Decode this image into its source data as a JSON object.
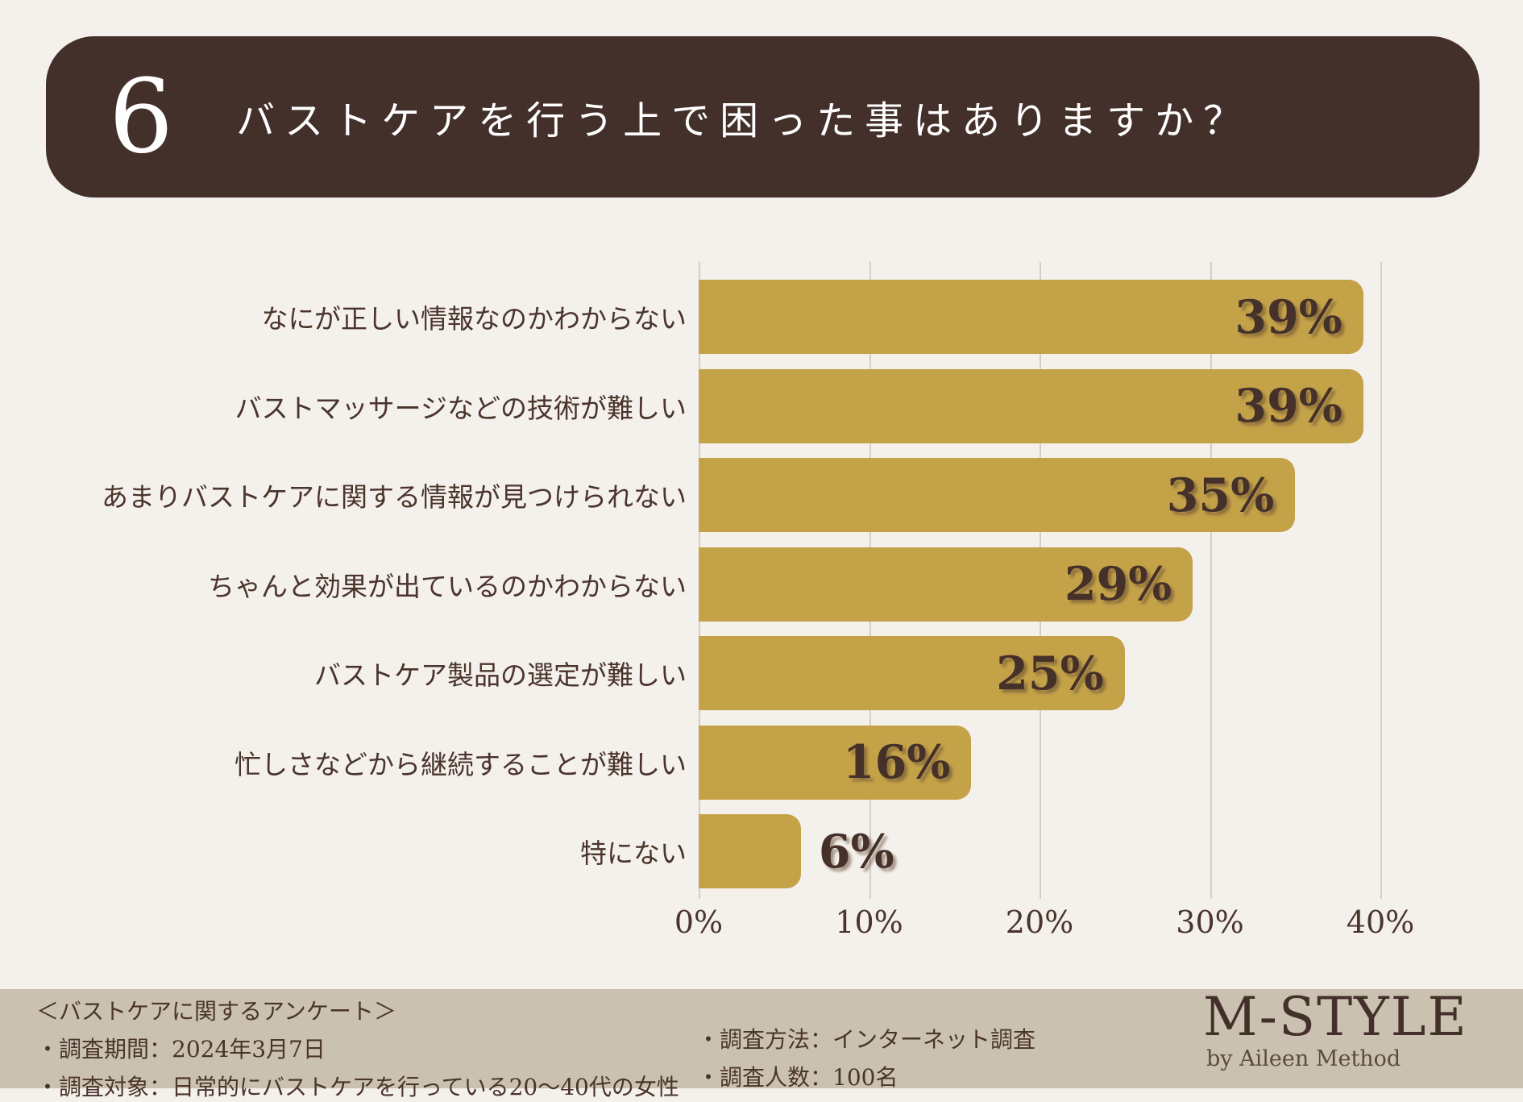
{
  "header": {
    "number": "6",
    "title": "バストケアを行う上で困った事はありますか？"
  },
  "chart_data": {
    "type": "bar",
    "orientation": "horizontal",
    "title": "バストケアを行う上で困った事はありますか？",
    "categories": [
      "なにが正しい情報なのかわからない",
      "バストマッサージなどの技術が難しい",
      "あまりバストケアに関する情報が見つけられない",
      "ちゃんと効果が出ているのかわからない",
      "バストケア製品の選定が難しい",
      "忙しさなどから継続することが難しい",
      "特にない"
    ],
    "values": [
      39,
      39,
      35,
      29,
      25,
      16,
      6
    ],
    "data_labels": [
      "39%",
      "39%",
      "35%",
      "29%",
      "25%",
      "16%",
      "6%"
    ],
    "value_suffix": "%",
    "xlim": [
      0,
      40
    ],
    "x_ticks": [
      "0%",
      "10%",
      "20%",
      "30%",
      "40%"
    ],
    "grid": "vertical",
    "legend": false
  },
  "footer": {
    "survey_title": "＜バストケアに関するアンケート＞",
    "items_left": [
      "・調査期間：2024年3月7日",
      "・調査対象：日常的にバストケアを行っている20〜40代の女性"
    ],
    "items_right": [
      "・調査方法：インターネット調査",
      "・調査人数：100名"
    ],
    "logo": {
      "name": "M-STYLE",
      "sub": "by Aileen Method"
    }
  },
  "colors": {
    "background": "#f4f0ec",
    "header_bg": "#43302a",
    "bar": "#c4a248",
    "text": "#4a342b",
    "text_dark": "#46312a",
    "gridline": "#d4cec6",
    "footer_bg": "#cbc1b1",
    "title_text": "#ffffff"
  }
}
